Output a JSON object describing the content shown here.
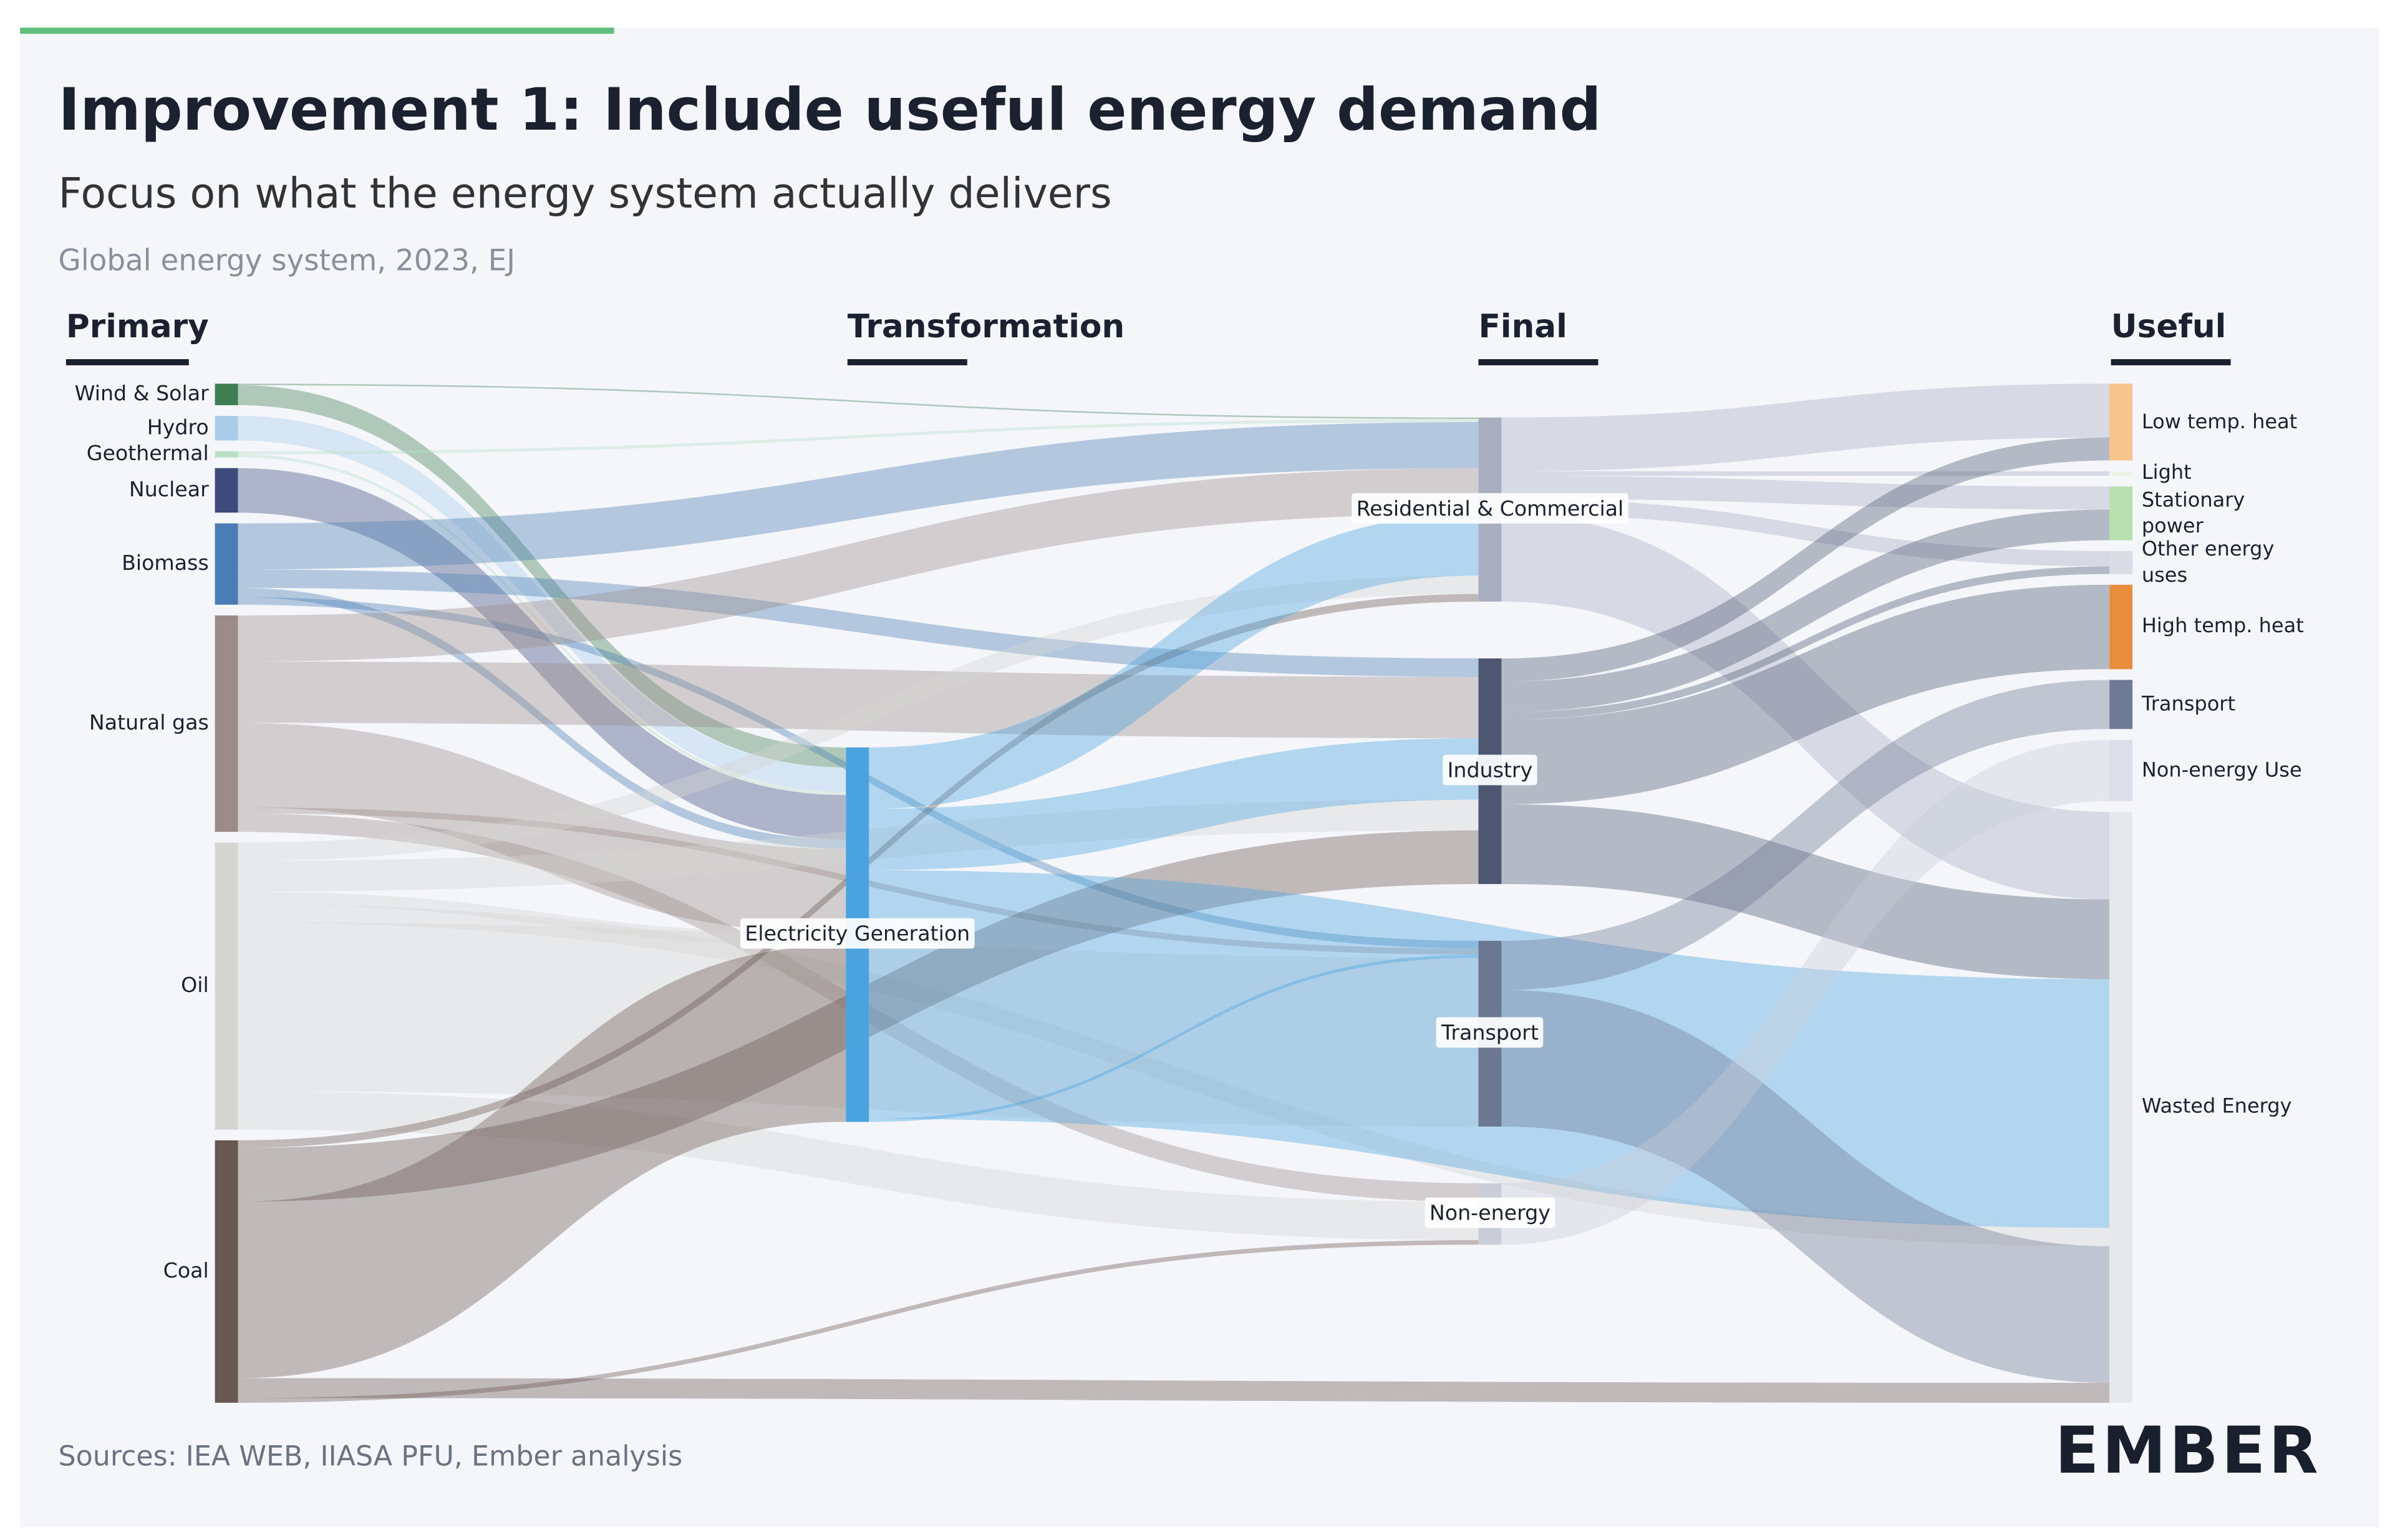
{
  "chart_data": {
    "type": "sankey",
    "title": "Improvement 1: Include useful energy demand",
    "subtitle": "Focus on what the energy system actually delivers",
    "note": "Global energy system, 2023, EJ",
    "source": "Sources: IEA WEB, IIASA PFU, Ember analysis",
    "brand": "EMBER",
    "columns": [
      {
        "label": "Primary",
        "nodes": [
          {
            "name": "Wind & Solar",
            "color": "#3f7d52",
            "links": [
              {
                "target": "Electricity Generation",
                "value": 13
              },
              {
                "target": "Residential & Commercial",
                "value": 1
              }
            ]
          },
          {
            "name": "Hydro",
            "color": "#a9cde9",
            "links": [
              {
                "target": "Electricity Generation",
                "value": 16
              }
            ]
          },
          {
            "name": "Geothermal",
            "color": "#b8e0c4",
            "links": [
              {
                "target": "Electricity Generation",
                "value": 2
              },
              {
                "target": "Residential & Commercial",
                "value": 2
              }
            ]
          },
          {
            "name": "Nuclear",
            "color": "#3c4b7c",
            "links": [
              {
                "target": "Electricity Generation",
                "value": 29
              }
            ]
          },
          {
            "name": "Biomass",
            "color": "#4a7db3",
            "links": [
              {
                "target": "Residential & Commercial",
                "value": 30
              },
              {
                "target": "Industry",
                "value": 12
              },
              {
                "target": "Electricity Generation",
                "value": 6
              },
              {
                "target": "Transport",
                "value": 5
              }
            ]
          },
          {
            "name": "Natural gas",
            "color": "#9b8c89",
            "links": [
              {
                "target": "Residential & Commercial",
                "value": 30
              },
              {
                "target": "Industry",
                "value": 40
              },
              {
                "target": "Electricity Generation",
                "value": 55
              },
              {
                "target": "Transport",
                "value": 4
              },
              {
                "target": "Non-energy",
                "value": 12
              }
            ]
          },
          {
            "name": "Oil",
            "color": "#d6d5d2",
            "links": [
              {
                "target": "Residential & Commercial",
                "value": 12
              },
              {
                "target": "Industry",
                "value": 20
              },
              {
                "target": "Electricity Generation",
                "value": 8
              },
              {
                "target": "Transport",
                "value": 110
              },
              {
                "target": "Non-energy",
                "value": 25
              },
              {
                "target": "Wasted Energy",
                "value": 12
              }
            ]
          },
          {
            "name": "Coal",
            "color": "#685851",
            "links": [
              {
                "target": "Residential & Commercial",
                "value": 5
              },
              {
                "target": "Industry",
                "value": 35
              },
              {
                "target": "Electricity Generation",
                "value": 115
              },
              {
                "target": "Non-energy",
                "value": 3
              },
              {
                "target": "Wasted Energy",
                "value": 13
              }
            ]
          }
        ]
      },
      {
        "label": "Transformation",
        "nodes": [
          {
            "name": "Electricity Generation",
            "color": "#4aa3df",
            "links": [
              {
                "target": "Residential & Commercial",
                "value": 40
              },
              {
                "target": "Industry",
                "value": 40
              },
              {
                "target": "Transport",
                "value": 2
              },
              {
                "target": "Wasted Energy",
                "value": 162
              }
            ]
          }
        ]
      },
      {
        "label": "Final",
        "nodes": [
          {
            "name": "Residential & Commercial",
            "color": "#a9aec0",
            "links": [
              {
                "target": "Low temp. heat",
                "value": 35
              },
              {
                "target": "Light",
                "value": 3
              },
              {
                "target": "Stationary power",
                "value": 15
              },
              {
                "target": "Other energy uses",
                "value": 10
              },
              {
                "target": "Wasted Energy",
                "value": 57
              }
            ]
          },
          {
            "name": "Industry",
            "color": "#4d5772",
            "links": [
              {
                "target": "High temp. heat",
                "value": 55
              },
              {
                "target": "Low temp. heat",
                "value": 15
              },
              {
                "target": "Stationary power",
                "value": 20
              },
              {
                "target": "Other energy uses",
                "value": 5
              },
              {
                "target": "Wasted Energy",
                "value": 52
              }
            ]
          },
          {
            "name": "Transport",
            "color": "#6c7791",
            "links": [
              {
                "target": "Transport",
                "value": 32
              },
              {
                "target": "Wasted Energy",
                "value": 89
              }
            ]
          },
          {
            "name": "Non-energy",
            "color": "#c9cdd8",
            "links": [
              {
                "target": "Non-energy Use",
                "value": 40
              }
            ]
          }
        ]
      },
      {
        "label": "Useful",
        "nodes": [
          {
            "name": "Low temp. heat",
            "color": "#f6c48d"
          },
          {
            "name": "Light",
            "color": "#eaf3e4"
          },
          {
            "name": "Stationary power",
            "color": "#b7e0ae"
          },
          {
            "name": "Other energy uses",
            "color": "#d9dce4"
          },
          {
            "name": "High temp. heat",
            "color": "#e88d3c"
          },
          {
            "name": "Transport",
            "color": "#6f7a95"
          },
          {
            "name": "Non-energy Use",
            "color": "#dcdfe9"
          },
          {
            "name": "Wasted Energy",
            "color": "#e7e8ec"
          }
        ]
      }
    ]
  }
}
